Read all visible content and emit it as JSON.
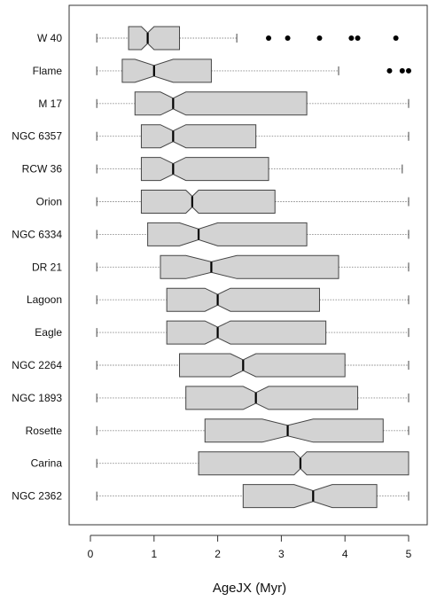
{
  "chart_data": {
    "type": "boxplot",
    "orientation": "horizontal",
    "notched": true,
    "xlabel": "AgeJX (Myr)",
    "xlim": [
      0,
      5
    ],
    "xticks": [
      0,
      1,
      2,
      3,
      4,
      5
    ],
    "colors": {
      "box_fill": "#d3d3d3",
      "box_stroke": "#444444",
      "median": "#000000",
      "outlier": "#000000",
      "whisker": "#888888"
    },
    "categories": [
      "W 40",
      "Flame",
      "M 17",
      "NGC 6357",
      "RCW 36",
      "Orion",
      "NGC 6334",
      "DR 21",
      "Lagoon",
      "Eagle",
      "NGC 2264",
      "NGC 1893",
      "Rosette",
      "Carina",
      "NGC 2362"
    ],
    "boxes": [
      {
        "label": "W 40",
        "min": 0.1,
        "q1": 0.6,
        "median": 0.9,
        "q3": 1.4,
        "max": 2.3,
        "notch": [
          0.8,
          1.0
        ],
        "outliers": [
          2.8,
          3.1,
          3.6,
          4.1,
          4.2,
          4.8
        ]
      },
      {
        "label": "Flame",
        "min": 0.1,
        "q1": 0.5,
        "median": 1.0,
        "q3": 1.9,
        "max": 3.9,
        "notch": [
          0.7,
          1.3
        ],
        "outliers": [
          4.7,
          4.9,
          5.0
        ]
      },
      {
        "label": "M 17",
        "min": 0.1,
        "q1": 0.7,
        "median": 1.3,
        "q3": 3.4,
        "max": 5.0,
        "notch": [
          1.1,
          1.5
        ],
        "outliers": []
      },
      {
        "label": "NGC 6357",
        "min": 0.1,
        "q1": 0.8,
        "median": 1.3,
        "q3": 2.6,
        "max": 5.0,
        "notch": [
          1.1,
          1.5
        ],
        "outliers": []
      },
      {
        "label": "RCW 36",
        "min": 0.1,
        "q1": 0.8,
        "median": 1.3,
        "q3": 2.8,
        "max": 4.9,
        "notch": [
          1.1,
          1.5
        ],
        "outliers": []
      },
      {
        "label": "Orion",
        "min": 0.1,
        "q1": 0.8,
        "median": 1.6,
        "q3": 2.9,
        "max": 5.0,
        "notch": [
          1.5,
          1.7
        ],
        "outliers": []
      },
      {
        "label": "NGC 6334",
        "min": 0.1,
        "q1": 0.9,
        "median": 1.7,
        "q3": 3.4,
        "max": 5.0,
        "notch": [
          1.4,
          2.0
        ],
        "outliers": []
      },
      {
        "label": "DR 21",
        "min": 0.1,
        "q1": 1.1,
        "median": 1.9,
        "q3": 3.9,
        "max": 5.0,
        "notch": [
          1.5,
          2.3
        ],
        "outliers": []
      },
      {
        "label": "Lagoon",
        "min": 0.1,
        "q1": 1.2,
        "median": 2.0,
        "q3": 3.6,
        "max": 5.0,
        "notch": [
          1.8,
          2.2
        ],
        "outliers": []
      },
      {
        "label": "Eagle",
        "min": 0.1,
        "q1": 1.2,
        "median": 2.0,
        "q3": 3.7,
        "max": 5.0,
        "notch": [
          1.8,
          2.2
        ],
        "outliers": []
      },
      {
        "label": "NGC 2264",
        "min": 0.1,
        "q1": 1.4,
        "median": 2.4,
        "q3": 4.0,
        "max": 5.0,
        "notch": [
          2.2,
          2.6
        ],
        "outliers": []
      },
      {
        "label": "NGC 1893",
        "min": 0.1,
        "q1": 1.5,
        "median": 2.6,
        "q3": 4.2,
        "max": 5.0,
        "notch": [
          2.4,
          2.8
        ],
        "outliers": []
      },
      {
        "label": "Rosette",
        "min": 0.1,
        "q1": 1.8,
        "median": 3.1,
        "q3": 4.6,
        "max": 5.0,
        "notch": [
          2.7,
          3.5
        ],
        "outliers": []
      },
      {
        "label": "Carina",
        "min": 0.1,
        "q1": 1.7,
        "median": 3.3,
        "q3": 5.0,
        "max": 5.0,
        "notch": [
          3.2,
          3.4
        ],
        "outliers": []
      },
      {
        "label": "NGC 2362",
        "min": 0.1,
        "q1": 2.4,
        "median": 3.5,
        "q3": 4.5,
        "max": 5.0,
        "notch": [
          3.2,
          3.8
        ],
        "outliers": []
      }
    ]
  }
}
